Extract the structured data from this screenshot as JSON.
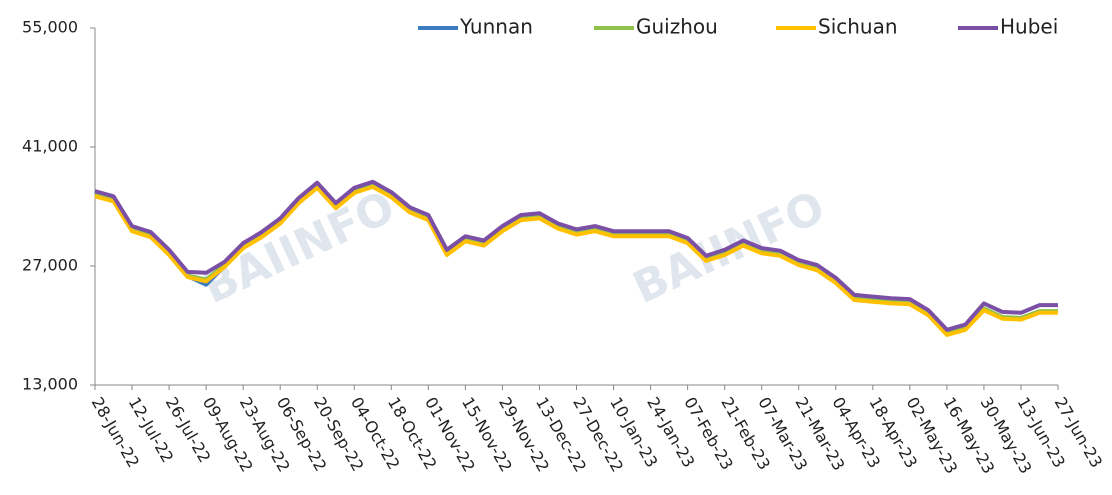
{
  "chart_data": {
    "type": "line",
    "categories": [
      "28-Jun-22",
      null,
      "12-Jul-22",
      null,
      "26-Jul-22",
      null,
      "09-Aug-22",
      null,
      "23-Aug-22",
      null,
      "06-Sep-22",
      null,
      "20-Sep-22",
      null,
      "04-Oct-22",
      null,
      "18-Oct-22",
      null,
      "01-Nov-22",
      null,
      "15-Nov-22",
      null,
      "29-Nov-22",
      null,
      "13-Dec-22",
      null,
      "27-Dec-22",
      null,
      "10-Jan-23",
      null,
      "24-Jan-23",
      null,
      "07-Feb-23",
      null,
      "21-Feb-23",
      null,
      "07-Mar-23",
      null,
      "21-Mar-23",
      null,
      "04-Apr-23",
      null,
      "18-Apr-23",
      null,
      "02-May-23",
      null,
      "16-May-23",
      null,
      "30-May-23",
      null,
      "13-Jun-23",
      null,
      "27-Jun-23"
    ],
    "series": [
      {
        "name": "Yunnan",
        "color": "#3e7cc0",
        "values": [
          35300,
          34700,
          31200,
          30500,
          28400,
          25800,
          24800,
          27000,
          29200,
          30500,
          32100,
          34500,
          36300,
          33900,
          35700,
          36400,
          35200,
          33400,
          32500,
          28400,
          30000,
          29500,
          31200,
          32500,
          32700,
          31500,
          30800,
          31200,
          30600,
          30600,
          30600,
          30600,
          29800,
          27700,
          28400,
          29500,
          28600,
          28300,
          27200,
          26600,
          25100,
          23100,
          22900,
          22700,
          22600,
          21300,
          19000,
          19600,
          21900,
          20900,
          20800,
          21600,
          21600
        ]
      },
      {
        "name": "Guizhou",
        "color": "#8fc24a",
        "values": [
          35400,
          34800,
          31300,
          30600,
          28500,
          25900,
          25400,
          27100,
          29300,
          30600,
          32200,
          34600,
          36400,
          34000,
          35800,
          36500,
          35300,
          33500,
          32600,
          28500,
          30100,
          29600,
          31300,
          32600,
          32800,
          31600,
          30900,
          31300,
          30700,
          30700,
          30700,
          30700,
          29900,
          27800,
          28500,
          29600,
          28700,
          28400,
          27300,
          26700,
          25200,
          23200,
          23000,
          22800,
          22700,
          21400,
          19100,
          19700,
          22000,
          21000,
          20900,
          21700,
          21700
        ]
      },
      {
        "name": "Sichuan",
        "color": "#ffc000",
        "values": [
          35200,
          34600,
          31100,
          30400,
          28300,
          25700,
          25200,
          26900,
          29100,
          30400,
          32000,
          34400,
          36200,
          33800,
          35600,
          36300,
          35100,
          33300,
          32400,
          28300,
          29900,
          29400,
          31100,
          32400,
          32600,
          31400,
          30700,
          31100,
          30500,
          30500,
          30500,
          30500,
          29700,
          27600,
          28300,
          29400,
          28500,
          28200,
          27100,
          26500,
          25000,
          23000,
          22800,
          22600,
          22500,
          21200,
          18900,
          19500,
          21800,
          20800,
          20700,
          21500,
          21500
        ]
      },
      {
        "name": "Hubei",
        "color": "#7b4fa6",
        "values": [
          35800,
          35200,
          31700,
          31000,
          28900,
          26300,
          26200,
          27500,
          29700,
          31000,
          32600,
          35000,
          36800,
          34400,
          36200,
          36900,
          35700,
          33900,
          33000,
          28900,
          30500,
          30000,
          31700,
          33000,
          33200,
          32000,
          31300,
          31700,
          31100,
          31100,
          31100,
          31100,
          30300,
          28200,
          28900,
          30000,
          29100,
          28800,
          27700,
          27100,
          25600,
          23600,
          23400,
          23200,
          23100,
          21800,
          19500,
          20100,
          22600,
          21600,
          21500,
          22400,
          22400
        ]
      }
    ],
    "ylim": [
      13000,
      55000
    ],
    "yticks": [
      {
        "value": 13000,
        "label": "13,000"
      },
      {
        "value": 27000,
        "label": "27,000"
      },
      {
        "value": 41000,
        "label": "41,000"
      },
      {
        "value": 55000,
        "label": "55,000"
      }
    ],
    "legend": "top-right",
    "grid": false,
    "watermark": "BAIINFO"
  }
}
